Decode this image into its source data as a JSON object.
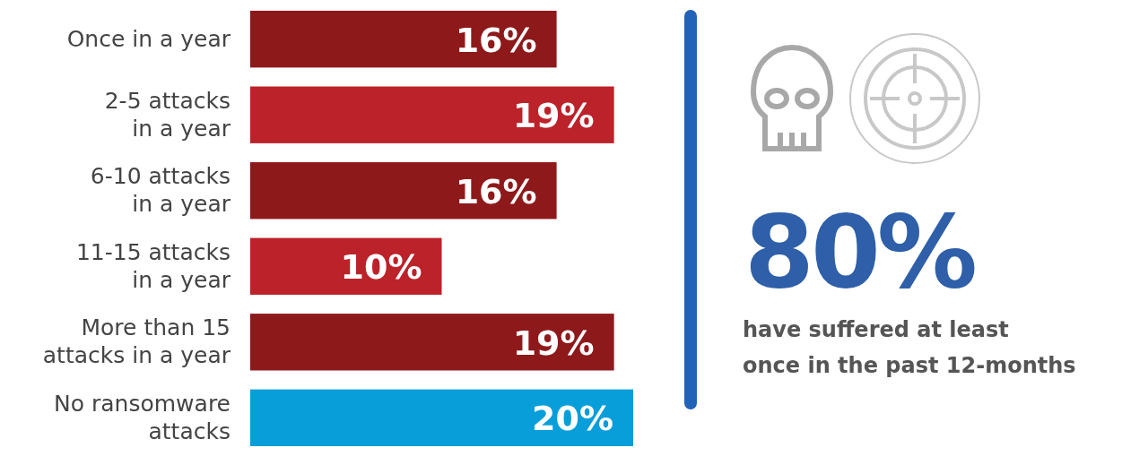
{
  "chart_data": {
    "type": "bar",
    "orientation": "horizontal",
    "categories": [
      "Once in a year",
      "2-5 attacks\nin a year",
      "6-10 attacks\nin a year",
      "11-15 attacks\nin a year",
      "More than 15\nattacks in a year",
      "No ransomware\nattacks"
    ],
    "values": [
      16,
      19,
      16,
      10,
      19,
      20
    ],
    "colors": [
      "#8e191b",
      "#bc2229",
      "#8e191b",
      "#bc2229",
      "#8e191b",
      "#089ed9"
    ],
    "value_labels": [
      "16%",
      "19%",
      "16%",
      "10%",
      "19%",
      "20%"
    ],
    "annotations": [
      "80%",
      "have suffered at least once in the past 12-months"
    ]
  }
}
